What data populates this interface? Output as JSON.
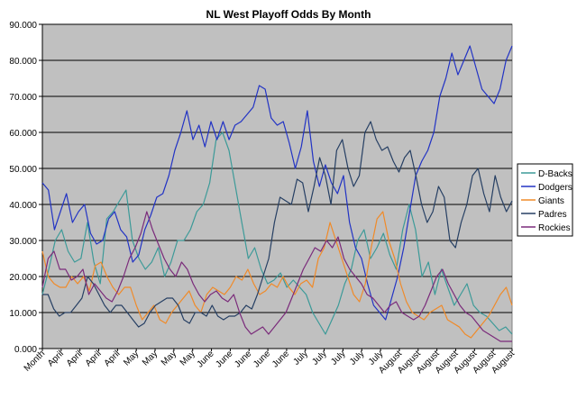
{
  "chart_data": {
    "type": "line",
    "title": "NL West Playoff Odds By Month",
    "xlabel": "",
    "ylabel": "",
    "ylim": [
      0,
      90
    ],
    "yticks": [
      "0.000",
      "10.000",
      "20.000",
      "30.000",
      "40.000",
      "50.000",
      "60.000",
      "70.000",
      "80.000",
      "90.000"
    ],
    "grid": true,
    "legend_position": "right",
    "x_tick_labels": [
      "Month",
      "April",
      "April",
      "April",
      "April",
      "May",
      "May",
      "May",
      "May",
      "June",
      "June",
      "June",
      "June",
      "June",
      "July",
      "July",
      "July",
      "July",
      "July",
      "August",
      "August",
      "August",
      "August",
      "August",
      "August",
      "August"
    ],
    "series": [
      {
        "name": "D-Backs",
        "color": "#3c9a98",
        "values": [
          15,
          22,
          30,
          33,
          27,
          24,
          25,
          35,
          24,
          18,
          36,
          38,
          41,
          44,
          30,
          25,
          22,
          24,
          28,
          20,
          24,
          30,
          30,
          33,
          38,
          40,
          46,
          58,
          60,
          55,
          45,
          35,
          25,
          28,
          22,
          18,
          19,
          21,
          17,
          19,
          17,
          15,
          10,
          7,
          4,
          8,
          12,
          18,
          22,
          30,
          33,
          25,
          28,
          32,
          26,
          22,
          33,
          40,
          33,
          20,
          24,
          15,
          22,
          17,
          12,
          15,
          18,
          12,
          10,
          9,
          7,
          5,
          6,
          4
        ]
      },
      {
        "name": "Dodgers",
        "color": "#2233c4",
        "values": [
          46,
          44,
          33,
          38,
          43,
          35,
          38,
          40,
          32,
          29,
          30,
          36,
          38,
          33,
          31,
          24,
          26,
          33,
          37,
          42,
          43,
          48,
          55,
          60,
          66,
          58,
          62,
          56,
          63,
          58,
          63,
          58,
          62,
          63,
          65,
          67,
          73,
          72,
          64,
          62,
          63,
          57,
          50,
          56,
          66,
          52,
          45,
          51,
          46,
          43,
          48,
          35,
          28,
          25,
          18,
          12,
          10,
          8,
          14,
          20,
          28,
          38,
          48,
          52,
          55,
          60,
          70,
          75,
          82,
          76,
          80,
          84,
          78,
          72,
          70,
          68,
          72,
          80,
          84
        ]
      },
      {
        "name": "Giants",
        "color": "#f08a28",
        "values": [
          27,
          20,
          18,
          17,
          17,
          20,
          18,
          20,
          16,
          23,
          24,
          20,
          17,
          15,
          17,
          17,
          12,
          8,
          10,
          12,
          8,
          7,
          10,
          12,
          14,
          16,
          12,
          10,
          15,
          17,
          16,
          15,
          17,
          20,
          19,
          22,
          18,
          15,
          16,
          18,
          17,
          20,
          17,
          15,
          18,
          19,
          17,
          25,
          28,
          35,
          30,
          25,
          20,
          15,
          13,
          18,
          28,
          36,
          38,
          30,
          25,
          18,
          13,
          10,
          9,
          8,
          10,
          11,
          12,
          8,
          7,
          6,
          4,
          3,
          5,
          7,
          9,
          12,
          15,
          17,
          12
        ]
      },
      {
        "name": "Padres",
        "color": "#263f63",
        "values": [
          15,
          15,
          11,
          9,
          10,
          10,
          12,
          14,
          20,
          18,
          15,
          12,
          10,
          12,
          12,
          10,
          8,
          6,
          7,
          10,
          12,
          13,
          14,
          14,
          12,
          8,
          7,
          10,
          10,
          9,
          12,
          9,
          8,
          9,
          9,
          10,
          12,
          11,
          15,
          20,
          25,
          35,
          42,
          41,
          40,
          47,
          46,
          38,
          45,
          53,
          48,
          40,
          55,
          58,
          50,
          45,
          48,
          60,
          63,
          58,
          55,
          56,
          52,
          49,
          53,
          55,
          48,
          40,
          35,
          38,
          45,
          42,
          30,
          28,
          35,
          40,
          48,
          50,
          43,
          38,
          48,
          42,
          38,
          41
        ]
      },
      {
        "name": "Rockies",
        "color": "#7a2a7a",
        "values": [
          17,
          25,
          27,
          22,
          22,
          19,
          20,
          22,
          15,
          18,
          16,
          14,
          13,
          16,
          20,
          25,
          28,
          32,
          38,
          33,
          29,
          25,
          22,
          20,
          24,
          22,
          18,
          15,
          13,
          15,
          16,
          14,
          13,
          15,
          10,
          6,
          4,
          5,
          6,
          4,
          6,
          8,
          10,
          14,
          18,
          22,
          25,
          28,
          27,
          30,
          28,
          31,
          25,
          22,
          20,
          18,
          15,
          14,
          12,
          10,
          12,
          13,
          10,
          9,
          8,
          9,
          12,
          16,
          20,
          22,
          18,
          15,
          12,
          10,
          9,
          7,
          5,
          4,
          3,
          2,
          2,
          2
        ]
      }
    ]
  }
}
